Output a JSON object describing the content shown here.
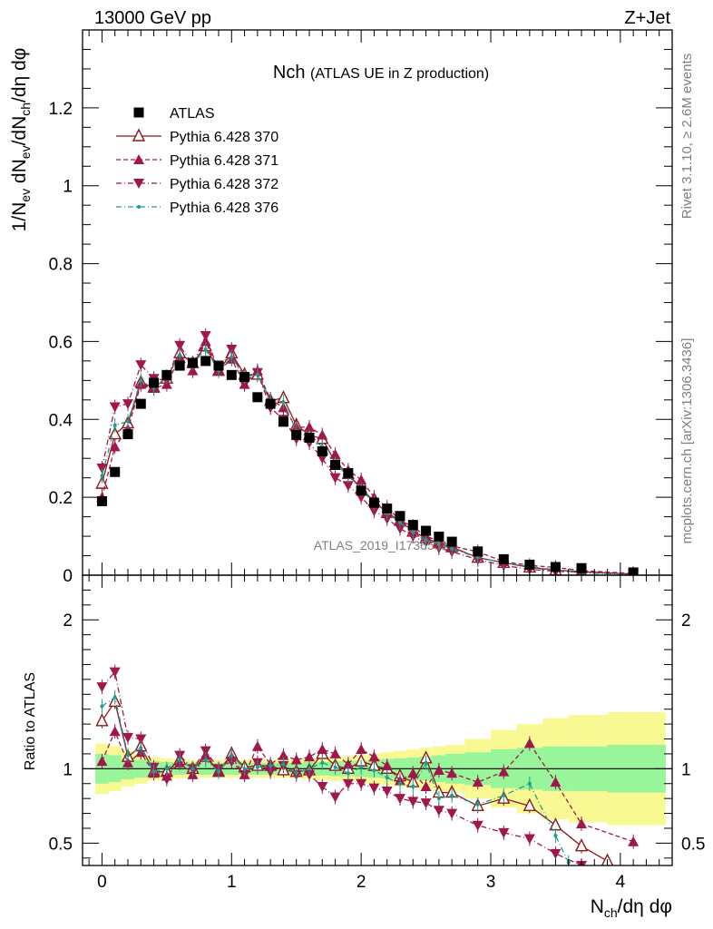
{
  "header": {
    "energy": "13000 GeV pp",
    "process": "Z+Jet",
    "plot_title": "Nch",
    "plot_subtitle": "(ATLAS UE in Z production)",
    "watermark": "ATLAS_2019_I1736531",
    "side_right_top": "Rivet 3.1.10, ≥ 2.6M events",
    "side_right_bottom": "mcplots.cern.ch [arXiv:1306.3436]"
  },
  "colors": {
    "atlas": "#000000",
    "p370": "#8b1a1a",
    "p371": "#a0174b",
    "p372": "#a0174b",
    "p376": "#1e9e8a",
    "band_inner": "#98f59a",
    "band_outer": "#f9f993"
  },
  "chart_data": [
    {
      "type": "scatter",
      "panel": "main",
      "ylabel": "1/N_ev dN_ev/dN_ch/dη dφ",
      "xlim": [
        -0.15,
        4.4
      ],
      "ylim": [
        0,
        1.4
      ],
      "x_ticks": [
        "0",
        "1",
        "2",
        "3",
        "4"
      ],
      "y_ticks": [
        "0",
        "0.2",
        "0.4",
        "0.6",
        "0.8",
        "1",
        "1.2"
      ],
      "legend_position": "top-left",
      "series": [
        {
          "name": "ATLAS",
          "style": "square",
          "x": [
            0,
            0.1,
            0.2,
            0.3,
            0.4,
            0.5,
            0.6,
            0.7,
            0.8,
            0.9,
            1.0,
            1.1,
            1.2,
            1.3,
            1.4,
            1.5,
            1.6,
            1.7,
            1.8,
            1.9,
            2.0,
            2.1,
            2.2,
            2.3,
            2.4,
            2.5,
            2.6,
            2.7,
            2.9,
            3.1,
            3.3,
            3.5,
            3.7,
            4.1
          ],
          "y": [
            0.19,
            0.265,
            0.362,
            0.44,
            0.494,
            0.514,
            0.538,
            0.545,
            0.55,
            0.538,
            0.514,
            0.509,
            0.457,
            0.44,
            0.394,
            0.36,
            0.353,
            0.318,
            0.283,
            0.262,
            0.217,
            0.186,
            0.171,
            0.152,
            0.129,
            0.114,
            0.099,
            0.086,
            0.061,
            0.041,
            0.027,
            0.021,
            0.018,
            0.007
          ]
        },
        {
          "name": "Pythia 6.428 370",
          "style": "open-triangle-solid-line",
          "x": [
            0,
            0.1,
            0.2,
            0.3,
            0.4,
            0.5,
            0.6,
            0.7,
            0.8,
            0.9,
            1.0,
            1.1,
            1.2,
            1.3,
            1.4,
            1.5,
            1.6,
            1.7,
            1.8,
            1.9,
            2.0,
            2.1,
            2.2,
            2.3,
            2.4,
            2.5,
            2.6,
            2.7,
            2.9,
            3.1,
            3.3,
            3.5,
            3.7,
            4.1
          ],
          "y": [
            0.235,
            0.362,
            0.39,
            0.495,
            0.482,
            0.505,
            0.57,
            0.545,
            0.588,
            0.525,
            0.57,
            0.515,
            0.515,
            0.448,
            0.455,
            0.385,
            0.36,
            0.35,
            0.29,
            0.26,
            0.222,
            0.19,
            0.16,
            0.14,
            0.112,
            0.095,
            0.082,
            0.072,
            0.045,
            0.032,
            0.02,
            0.013,
            0.009,
            0.003
          ]
        },
        {
          "name": "Pythia 6.428 371",
          "style": "filled-triangle-dashed-line",
          "x": [
            0,
            0.1,
            0.2,
            0.3,
            0.4,
            0.5,
            0.6,
            0.7,
            0.8,
            0.9,
            1.0,
            1.1,
            1.2,
            1.3,
            1.4,
            1.5,
            1.6,
            1.7,
            1.8,
            1.9,
            2.0,
            2.1,
            2.2,
            2.3,
            2.4,
            2.5,
            2.6,
            2.7,
            2.9,
            3.1,
            3.3,
            3.5,
            3.7,
            4.1
          ],
          "y": [
            0.2,
            0.33,
            0.375,
            0.49,
            0.48,
            0.49,
            0.56,
            0.525,
            0.6,
            0.525,
            0.555,
            0.49,
            0.525,
            0.452,
            0.43,
            0.38,
            0.38,
            0.36,
            0.31,
            0.27,
            0.245,
            0.2,
            0.175,
            0.14,
            0.125,
            0.1,
            0.088,
            0.075,
            0.06,
            0.035,
            0.025,
            0.02,
            0.012,
            0.004
          ]
        },
        {
          "name": "Pythia 6.428 372",
          "style": "filled-down-triangle-dashdot-line",
          "x": [
            0,
            0.1,
            0.2,
            0.3,
            0.4,
            0.5,
            0.6,
            0.7,
            0.8,
            0.9,
            1.0,
            1.1,
            1.2,
            1.3,
            1.4,
            1.5,
            1.6,
            1.7,
            1.8,
            1.9,
            2.0,
            2.1,
            2.2,
            2.3,
            2.4,
            2.5,
            2.6,
            2.7,
            2.9,
            3.1,
            3.3,
            3.5,
            3.7,
            4.1
          ],
          "y": [
            0.275,
            0.432,
            0.44,
            0.54,
            0.505,
            0.5,
            0.59,
            0.54,
            0.615,
            0.525,
            0.58,
            0.49,
            0.52,
            0.43,
            0.4,
            0.35,
            0.34,
            0.3,
            0.25,
            0.23,
            0.2,
            0.165,
            0.145,
            0.12,
            0.1,
            0.085,
            0.07,
            0.06,
            0.04,
            0.025,
            0.015,
            0.01,
            0.007,
            0.002
          ]
        },
        {
          "name": "Pythia 6.428 376",
          "style": "dot-dashdot-line",
          "x": [
            0,
            0.1,
            0.2,
            0.3,
            0.4,
            0.5,
            0.6,
            0.7,
            0.8,
            0.9,
            1.0,
            1.1,
            1.2,
            1.3,
            1.4,
            1.5,
            1.6,
            1.7,
            1.8,
            1.9,
            2.0,
            2.1,
            2.2,
            2.3,
            2.4,
            2.5,
            2.6,
            2.7,
            2.9,
            3.1,
            3.3,
            3.5,
            3.7,
            4.1
          ],
          "y": [
            0.255,
            0.385,
            0.395,
            0.5,
            0.48,
            0.51,
            0.565,
            0.545,
            0.58,
            0.525,
            0.56,
            0.51,
            0.515,
            0.45,
            0.445,
            0.37,
            0.355,
            0.33,
            0.285,
            0.255,
            0.22,
            0.185,
            0.16,
            0.135,
            0.11,
            0.09,
            0.08,
            0.068,
            0.045,
            0.033,
            0.022,
            0.014,
            0.006,
            0.002
          ]
        }
      ]
    },
    {
      "type": "scatter",
      "panel": "ratio",
      "xlabel": "N_ch/dη dφ",
      "ylabel": "Ratio to ATLAS",
      "xlim": [
        -0.15,
        4.4
      ],
      "ylim": [
        0.35,
        2.3
      ],
      "x_ticks": [
        "0",
        "1",
        "2",
        "3",
        "4"
      ],
      "y_ticks": [
        "0.5",
        "1",
        "2"
      ],
      "band_edges": [
        -0.05,
        0.05,
        0.15,
        0.25,
        0.35,
        0.45,
        0.55,
        0.65,
        0.75,
        0.85,
        0.95,
        1.05,
        1.15,
        1.25,
        1.35,
        1.45,
        1.55,
        1.65,
        1.75,
        1.85,
        1.95,
        2.05,
        2.15,
        2.25,
        2.35,
        2.45,
        2.55,
        2.65,
        2.8,
        3.0,
        3.2,
        3.4,
        3.6,
        3.9,
        4.35
      ],
      "band_inner": [
        0.1,
        0.09,
        0.07,
        0.06,
        0.05,
        0.045,
        0.04,
        0.04,
        0.04,
        0.04,
        0.04,
        0.04,
        0.04,
        0.04,
        0.04,
        0.04,
        0.045,
        0.045,
        0.05,
        0.05,
        0.055,
        0.06,
        0.065,
        0.07,
        0.075,
        0.08,
        0.09,
        0.1,
        0.11,
        0.13,
        0.14,
        0.15,
        0.15,
        0.16
      ],
      "band_outer": [
        0.17,
        0.15,
        0.12,
        0.1,
        0.08,
        0.07,
        0.065,
        0.06,
        0.06,
        0.06,
        0.06,
        0.06,
        0.06,
        0.06,
        0.06,
        0.065,
        0.07,
        0.075,
        0.08,
        0.085,
        0.09,
        0.1,
        0.11,
        0.12,
        0.13,
        0.14,
        0.15,
        0.16,
        0.2,
        0.26,
        0.3,
        0.34,
        0.36,
        0.38
      ],
      "series": [
        {
          "name": "Pythia 6.428 370",
          "x": [
            0,
            0.1,
            0.2,
            0.3,
            0.4,
            0.5,
            0.6,
            0.7,
            0.8,
            0.9,
            1.0,
            1.1,
            1.2,
            1.3,
            1.4,
            1.5,
            1.6,
            1.7,
            1.8,
            1.9,
            2.0,
            2.1,
            2.2,
            2.3,
            2.4,
            2.5,
            2.6,
            2.7,
            2.9,
            3.1,
            3.3,
            3.5,
            3.7,
            3.9
          ],
          "y": [
            1.32,
            1.45,
            1.08,
            1.15,
            0.98,
            0.98,
            1.06,
            1.0,
            1.08,
            0.98,
            1.1,
            1.01,
            1.02,
            1.02,
            0.99,
            0.98,
            0.99,
            1.1,
            1.02,
            1.0,
            1.05,
            1.02,
            1.0,
            0.95,
            0.91,
            1.07,
            0.84,
            0.84,
            0.75,
            0.8,
            0.75,
            0.62,
            0.48,
            0.38
          ]
        },
        {
          "name": "Pythia 6.428 371",
          "x": [
            0,
            0.1,
            0.2,
            0.3,
            0.4,
            0.5,
            0.6,
            0.7,
            0.8,
            0.9,
            1.0,
            1.1,
            1.2,
            1.3,
            1.4,
            1.5,
            1.6,
            1.7,
            1.8,
            1.9,
            2.0,
            2.1,
            2.2,
            2.3,
            2.4,
            2.5,
            2.6,
            2.7,
            2.9,
            3.1,
            3.3,
            3.5,
            3.7,
            4.1
          ],
          "y": [
            1.05,
            1.25,
            1.04,
            1.11,
            0.97,
            0.95,
            1.04,
            0.96,
            1.09,
            0.98,
            1.08,
            0.96,
            1.15,
            1.03,
            1.09,
            1.06,
            1.08,
            1.13,
            1.1,
            1.03,
            1.13,
            1.08,
            1.02,
            0.92,
            0.97,
            0.88,
            0.99,
            0.97,
            0.91,
            0.98,
            1.17,
            0.91,
            0.63,
            0.51
          ]
        },
        {
          "name": "Pythia 6.428 372",
          "x": [
            0,
            0.1,
            0.2,
            0.3,
            0.4,
            0.5,
            0.6,
            0.7,
            0.8,
            0.9,
            1.0,
            1.1,
            1.2,
            1.3,
            1.4,
            1.5,
            1.6,
            1.7,
            1.8,
            1.9,
            2.0,
            2.1,
            2.2,
            2.3,
            2.4,
            2.5,
            2.6,
            2.7,
            2.9,
            3.1,
            3.3,
            3.5,
            3.7
          ],
          "y": [
            1.55,
            1.65,
            1.21,
            1.2,
            1.01,
            0.93,
            1.09,
            1.0,
            1.12,
            1.0,
            1.05,
            0.96,
            1.04,
            0.98,
            1.02,
            0.96,
            0.96,
            0.88,
            0.81,
            0.9,
            0.9,
            0.87,
            0.85,
            0.8,
            0.78,
            0.77,
            0.72,
            0.7,
            0.62,
            0.57,
            0.53,
            0.43,
            0.35
          ]
        },
        {
          "name": "Pythia 6.428 376",
          "x": [
            0,
            0.1,
            0.2,
            0.3,
            0.4,
            0.5,
            0.6,
            0.7,
            0.8,
            0.9,
            1.0,
            1.1,
            1.2,
            1.3,
            1.4,
            1.5,
            1.6,
            1.7,
            1.8,
            1.9,
            2.0,
            2.1,
            2.2,
            2.3,
            2.4,
            2.5,
            2.6,
            2.7,
            2.9,
            3.1,
            3.3,
            3.5,
            3.6
          ],
          "y": [
            1.42,
            1.48,
            1.09,
            1.14,
            0.98,
            1.0,
            1.06,
            1.0,
            1.06,
            0.98,
            1.09,
            1.0,
            1.01,
            1.02,
            1.03,
            0.97,
            1.0,
            1.04,
            1.01,
            0.97,
            1.01,
            0.99,
            0.94,
            0.9,
            0.88,
            1.04,
            0.8,
            0.82,
            0.76,
            0.82,
            0.9,
            0.55,
            0.37
          ]
        }
      ]
    }
  ]
}
